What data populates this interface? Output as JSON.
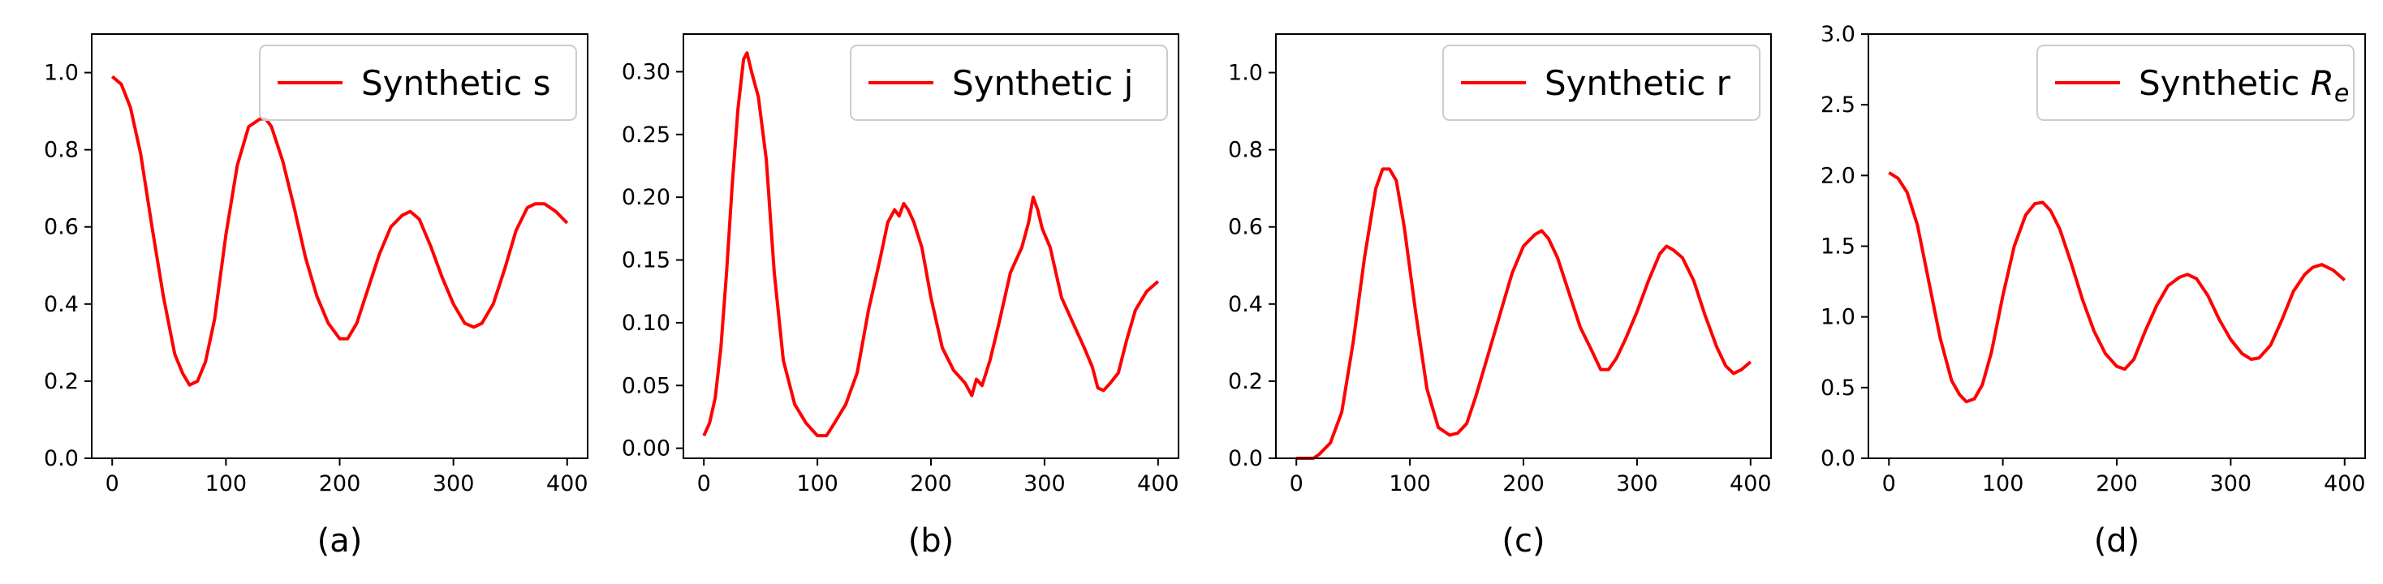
{
  "chart_data": [
    {
      "type": "line",
      "caption": "(a)",
      "xlim": [
        -18,
        418
      ],
      "ylim": [
        0,
        1.1
      ],
      "xticks": [
        0,
        100,
        200,
        300,
        400
      ],
      "yticks": [
        0.0,
        0.2,
        0.4,
        0.6,
        0.8,
        1.0
      ],
      "ytick_decimals": 1,
      "legend_position": "upper right",
      "legend_label": "Synthetic s",
      "color": "#ff0000",
      "series": [
        {
          "name": "Synthetic s",
          "x": [
            0,
            8,
            16,
            25,
            35,
            45,
            55,
            62,
            68,
            75,
            82,
            90,
            100,
            110,
            120,
            130,
            135,
            140,
            150,
            160,
            170,
            180,
            190,
            200,
            207,
            215,
            225,
            235,
            245,
            255,
            262,
            270,
            280,
            290,
            300,
            310,
            318,
            325,
            335,
            345,
            355,
            365,
            372,
            380,
            390,
            400
          ],
          "y": [
            0.99,
            0.97,
            0.91,
            0.79,
            0.6,
            0.42,
            0.27,
            0.22,
            0.19,
            0.2,
            0.25,
            0.36,
            0.58,
            0.76,
            0.86,
            0.88,
            0.88,
            0.86,
            0.77,
            0.65,
            0.52,
            0.42,
            0.35,
            0.31,
            0.31,
            0.35,
            0.44,
            0.53,
            0.6,
            0.63,
            0.64,
            0.62,
            0.55,
            0.47,
            0.4,
            0.35,
            0.34,
            0.35,
            0.4,
            0.49,
            0.59,
            0.65,
            0.66,
            0.66,
            0.64,
            0.61
          ]
        }
      ]
    },
    {
      "type": "line",
      "caption": "(b)",
      "xlim": [
        -18,
        418
      ],
      "ylim": [
        -0.008,
        0.33
      ],
      "xticks": [
        0,
        100,
        200,
        300,
        400
      ],
      "yticks": [
        0.0,
        0.05,
        0.1,
        0.15,
        0.2,
        0.25,
        0.3
      ],
      "ytick_decimals": 2,
      "legend_position": "upper right",
      "legend_label": "Synthetic j",
      "color": "#ff0000",
      "series": [
        {
          "name": "Synthetic j",
          "x": [
            0,
            5,
            10,
            15,
            20,
            25,
            30,
            35,
            38,
            42,
            48,
            55,
            62,
            70,
            80,
            90,
            100,
            108,
            115,
            125,
            135,
            145,
            155,
            162,
            168,
            172,
            176,
            180,
            185,
            192,
            200,
            210,
            220,
            230,
            236,
            240,
            245,
            252,
            260,
            270,
            280,
            286,
            290,
            294,
            298,
            305,
            315,
            325,
            335,
            342,
            347,
            352,
            358,
            365,
            372,
            380,
            390,
            400
          ],
          "y": [
            0.01,
            0.02,
            0.04,
            0.08,
            0.14,
            0.21,
            0.27,
            0.31,
            0.315,
            0.3,
            0.28,
            0.23,
            0.14,
            0.07,
            0.035,
            0.02,
            0.01,
            0.01,
            0.02,
            0.035,
            0.06,
            0.11,
            0.15,
            0.18,
            0.19,
            0.185,
            0.195,
            0.19,
            0.18,
            0.16,
            0.12,
            0.08,
            0.062,
            0.052,
            0.042,
            0.055,
            0.05,
            0.07,
            0.1,
            0.14,
            0.16,
            0.18,
            0.2,
            0.19,
            0.175,
            0.16,
            0.12,
            0.1,
            0.08,
            0.065,
            0.048,
            0.046,
            0.052,
            0.06,
            0.085,
            0.11,
            0.125,
            0.133
          ]
        }
      ]
    },
    {
      "type": "line",
      "caption": "(c)",
      "xlim": [
        -18,
        418
      ],
      "ylim": [
        0,
        1.1
      ],
      "xticks": [
        0,
        100,
        200,
        300,
        400
      ],
      "yticks": [
        0.0,
        0.2,
        0.4,
        0.6,
        0.8,
        1.0
      ],
      "ytick_decimals": 1,
      "legend_position": "upper right",
      "legend_label": "Synthetic r",
      "color": "#ff0000",
      "series": [
        {
          "name": "Synthetic r",
          "x": [
            0,
            10,
            15,
            20,
            25,
            30,
            40,
            50,
            60,
            70,
            76,
            82,
            88,
            95,
            105,
            115,
            125,
            135,
            142,
            150,
            158,
            168,
            180,
            190,
            200,
            210,
            216,
            222,
            230,
            240,
            250,
            260,
            268,
            275,
            282,
            290,
            300,
            310,
            320,
            326,
            332,
            340,
            350,
            360,
            370,
            378,
            385,
            392,
            400
          ],
          "y": [
            0.0,
            0.0,
            0.0,
            0.01,
            0.025,
            0.04,
            0.12,
            0.3,
            0.52,
            0.7,
            0.75,
            0.75,
            0.72,
            0.6,
            0.38,
            0.18,
            0.08,
            0.06,
            0.065,
            0.09,
            0.16,
            0.26,
            0.38,
            0.48,
            0.55,
            0.58,
            0.59,
            0.57,
            0.52,
            0.43,
            0.34,
            0.28,
            0.23,
            0.23,
            0.26,
            0.31,
            0.38,
            0.46,
            0.53,
            0.55,
            0.54,
            0.52,
            0.46,
            0.37,
            0.29,
            0.24,
            0.22,
            0.23,
            0.25
          ]
        }
      ]
    },
    {
      "type": "line",
      "caption": "(d)",
      "xlim": [
        -18,
        418
      ],
      "ylim": [
        0,
        3.0
      ],
      "xticks": [
        0,
        100,
        200,
        300,
        400
      ],
      "yticks": [
        0.0,
        0.5,
        1.0,
        1.5,
        2.0,
        2.5,
        3.0
      ],
      "ytick_decimals": 1,
      "legend_position": "upper right",
      "legend_label": "Synthetic R",
      "legend_label_subscript": "e",
      "color": "#ff0000",
      "series": [
        {
          "name": "Synthetic Re",
          "x": [
            0,
            8,
            16,
            25,
            35,
            45,
            55,
            62,
            68,
            75,
            82,
            90,
            100,
            110,
            120,
            128,
            135,
            142,
            150,
            160,
            170,
            180,
            190,
            200,
            207,
            215,
            225,
            235,
            245,
            255,
            262,
            270,
            280,
            290,
            300,
            310,
            318,
            325,
            335,
            345,
            355,
            365,
            372,
            380,
            390,
            400
          ],
          "y": [
            2.02,
            1.98,
            1.88,
            1.65,
            1.25,
            0.85,
            0.55,
            0.45,
            0.4,
            0.42,
            0.52,
            0.75,
            1.15,
            1.5,
            1.72,
            1.8,
            1.81,
            1.75,
            1.62,
            1.38,
            1.12,
            0.9,
            0.74,
            0.65,
            0.63,
            0.7,
            0.9,
            1.08,
            1.22,
            1.28,
            1.3,
            1.27,
            1.15,
            0.98,
            0.84,
            0.74,
            0.7,
            0.71,
            0.8,
            0.98,
            1.18,
            1.3,
            1.35,
            1.37,
            1.33,
            1.26
          ]
        }
      ]
    }
  ]
}
